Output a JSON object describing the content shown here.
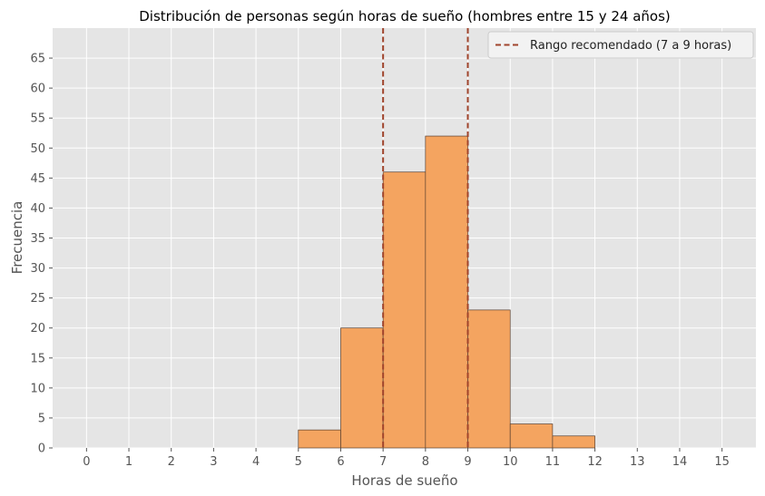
{
  "chart_data": {
    "type": "bar",
    "title": "Distribución de personas según horas de sueño (hombres entre 15 y 24 años)",
    "xlabel": "Horas de sueño",
    "ylabel": "Frecuencia",
    "xlim": [
      -0.8,
      15.8
    ],
    "ylim": [
      0,
      70
    ],
    "x_ticks": [
      0,
      1,
      2,
      3,
      4,
      5,
      6,
      7,
      8,
      9,
      10,
      11,
      12,
      13,
      14,
      15
    ],
    "y_ticks": [
      0,
      5,
      10,
      15,
      20,
      25,
      30,
      35,
      40,
      45,
      50,
      55,
      60,
      65
    ],
    "bins": [
      {
        "start": 5,
        "end": 6,
        "count": 3
      },
      {
        "start": 6,
        "end": 7,
        "count": 20
      },
      {
        "start": 7,
        "end": 8,
        "count": 46
      },
      {
        "start": 8,
        "end": 9,
        "count": 52
      },
      {
        "start": 9,
        "end": 10,
        "count": 23
      },
      {
        "start": 10,
        "end": 11,
        "count": 4
      },
      {
        "start": 11,
        "end": 12,
        "count": 2
      }
    ],
    "reference_lines": [
      7,
      9
    ],
    "legend": {
      "label": "Rango recomendado (7 a 9 horas)",
      "placement": "top-right"
    },
    "grid": true,
    "colors": {
      "bar_fill": "#f4a460",
      "bar_edge": "#5a4030",
      "reference_line": "#a0442c",
      "plot_background": "#e5e5e5",
      "grid": "#ffffff"
    }
  }
}
